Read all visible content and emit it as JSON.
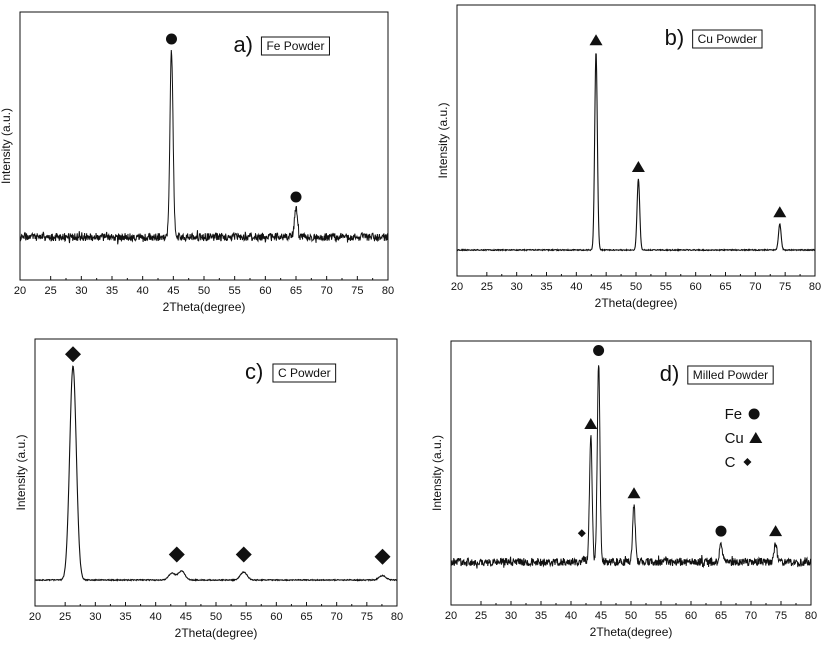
{
  "chart_data": [
    {
      "type": "line",
      "panel_letter": "a)",
      "title": "Fe Powder",
      "xlabel": "2Theta(degree)",
      "ylabel": "Intensity (a.u.)",
      "xlim": [
        20,
        80
      ],
      "xticks": [
        "20",
        "25",
        "30",
        "35",
        "40",
        "45",
        "50",
        "55",
        "60",
        "65",
        "70",
        "75",
        "80"
      ],
      "grid": false,
      "noise": "high",
      "series": [
        {
          "values": [
            [
              44.7,
              0.93
            ],
            [
              65.0,
              0.14
            ]
          ]
        }
      ],
      "peaks": [
        {
          "x": 44.7,
          "y": 0.93,
          "marker": "circle"
        },
        {
          "x": 65.0,
          "y": 0.14,
          "marker": "circle"
        }
      ],
      "legend": []
    },
    {
      "type": "line",
      "panel_letter": "b)",
      "title": "Cu Powder",
      "xlabel": "2Theta(degree)",
      "ylabel": "Intensity (a.u.)",
      "xlim": [
        20,
        80
      ],
      "xticks": [
        "20",
        "25",
        "30",
        "35",
        "40",
        "45",
        "50",
        "55",
        "60",
        "65",
        "70",
        "75",
        "80"
      ],
      "grid": false,
      "noise": "low",
      "series": [
        {
          "values": [
            [
              43.3,
              0.92
            ],
            [
              50.4,
              0.33
            ],
            [
              74.1,
              0.12
            ]
          ]
        }
      ],
      "peaks": [
        {
          "x": 43.3,
          "y": 0.92,
          "marker": "triangle"
        },
        {
          "x": 50.4,
          "y": 0.33,
          "marker": "triangle"
        },
        {
          "x": 74.1,
          "y": 0.12,
          "marker": "triangle"
        }
      ],
      "legend": []
    },
    {
      "type": "line",
      "panel_letter": "c)",
      "title": "C Powder",
      "xlabel": "2Theta(degree)",
      "ylabel": "Intensity (a.u.)",
      "xlim": [
        20,
        80
      ],
      "xticks": [
        "20",
        "25",
        "30",
        "35",
        "40",
        "45",
        "50",
        "55",
        "60",
        "65",
        "70",
        "75",
        "80"
      ],
      "grid": false,
      "noise": "low",
      "series": [
        {
          "values": [
            [
              26.3,
              0.95
            ],
            [
              42.7,
              0.03
            ],
            [
              44.3,
              0.04
            ],
            [
              54.6,
              0.035
            ],
            [
              77.6,
              0.02
            ]
          ]
        }
      ],
      "peaks": [
        {
          "x": 26.3,
          "y": 0.95,
          "marker": "diamond"
        },
        {
          "x": 43.5,
          "y": 0.06,
          "marker": "diamond"
        },
        {
          "x": 54.6,
          "y": 0.06,
          "marker": "diamond"
        },
        {
          "x": 77.6,
          "y": 0.05,
          "marker": "diamond"
        }
      ],
      "legend": []
    },
    {
      "type": "line",
      "panel_letter": "d)",
      "title": "Milled Powder",
      "xlabel": "2Theta(degree)",
      "ylabel": "Intensity (a.u.)",
      "xlim": [
        20,
        80
      ],
      "xticks": [
        "20",
        "25",
        "30",
        "35",
        "40",
        "45",
        "50",
        "55",
        "60",
        "65",
        "70",
        "75",
        "80"
      ],
      "grid": false,
      "noise": "high",
      "series": [
        {
          "values": [
            [
              42.0,
              0.02
            ],
            [
              43.3,
              0.6
            ],
            [
              44.6,
              0.95
            ],
            [
              50.5,
              0.27
            ],
            [
              65.0,
              0.09
            ],
            [
              74.1,
              0.09
            ]
          ]
        }
      ],
      "peaks": [
        {
          "x": 41.8,
          "y": 0.08,
          "marker": "diamond-small"
        },
        {
          "x": 43.3,
          "y": 0.6,
          "marker": "triangle"
        },
        {
          "x": 44.6,
          "y": 0.95,
          "marker": "circle"
        },
        {
          "x": 50.5,
          "y": 0.27,
          "marker": "triangle"
        },
        {
          "x": 65.0,
          "y": 0.09,
          "marker": "circle"
        },
        {
          "x": 74.1,
          "y": 0.09,
          "marker": "triangle"
        }
      ],
      "legend": [
        {
          "label": "Fe",
          "marker": "circle"
        },
        {
          "label": "Cu",
          "marker": "triangle"
        },
        {
          "label": "C",
          "marker": "diamond"
        }
      ]
    }
  ]
}
